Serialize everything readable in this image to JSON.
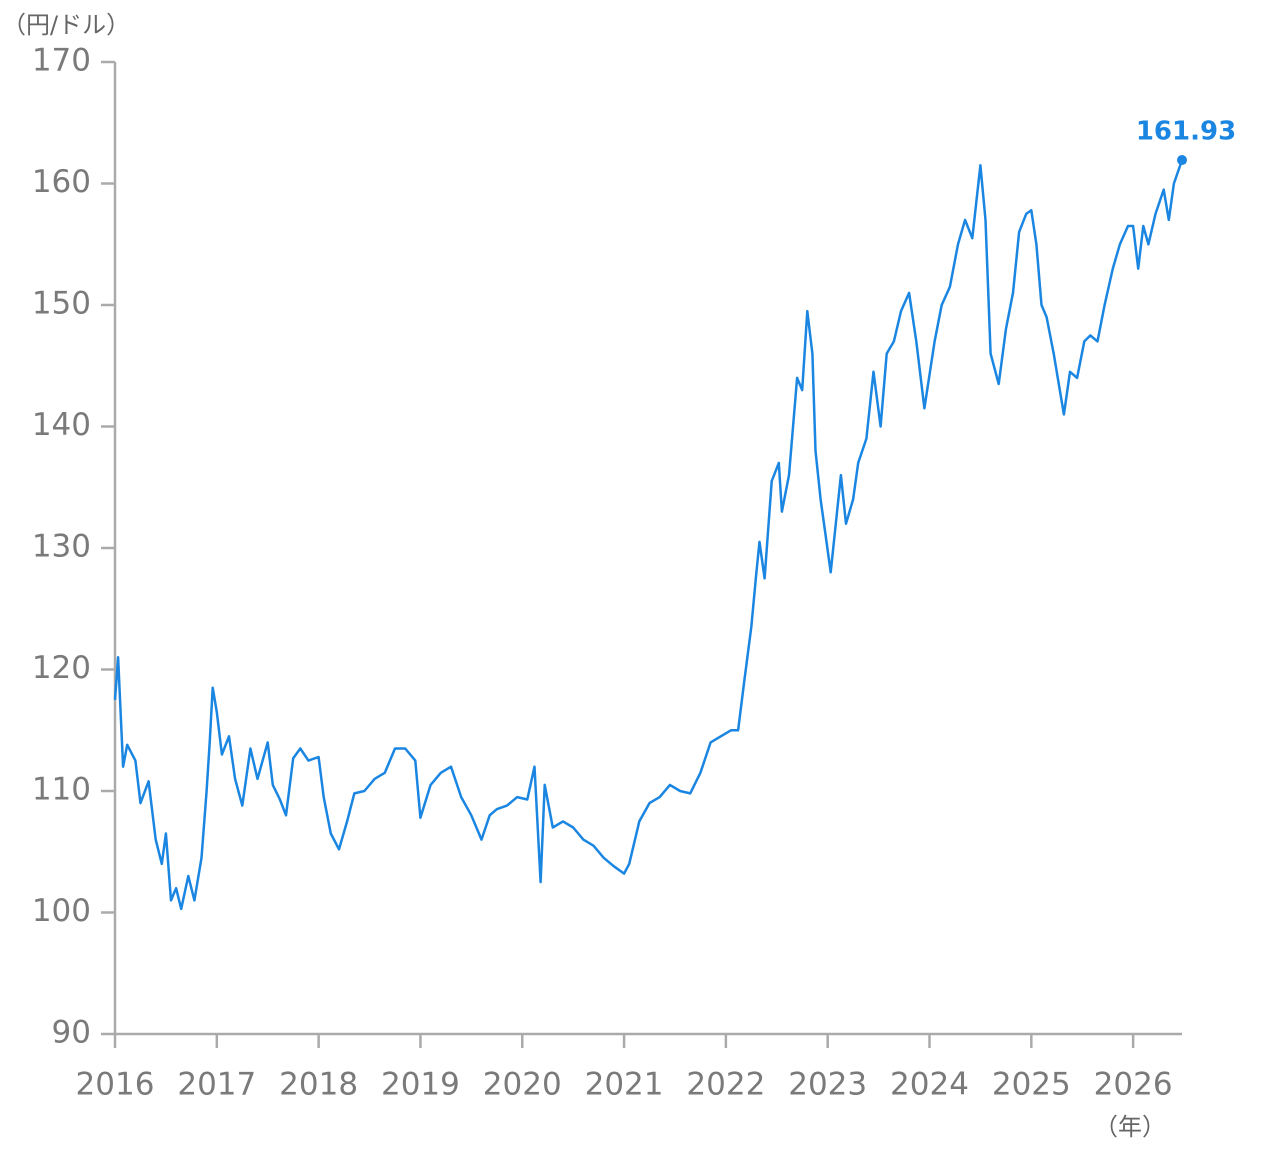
{
  "chart_data": {
    "type": "line",
    "y_label": "（円/ドル）",
    "x_label": "（年）",
    "color": "#1a86e2",
    "x": [
      2016.0,
      2016.03,
      2016.08,
      2016.12,
      2016.2,
      2016.25,
      2016.33,
      2016.4,
      2016.46,
      2016.5,
      2016.55,
      2016.6,
      2016.65,
      2016.72,
      2016.78,
      2016.85,
      2016.9,
      2016.93,
      2016.96,
      2017.0,
      2017.05,
      2017.12,
      2017.18,
      2017.25,
      2017.33,
      2017.4,
      2017.5,
      2017.55,
      2017.62,
      2017.68,
      2017.75,
      2017.82,
      2017.9,
      2018.0,
      2018.05,
      2018.12,
      2018.2,
      2018.28,
      2018.35,
      2018.45,
      2018.55,
      2018.65,
      2018.75,
      2018.85,
      2018.95,
      2019.0,
      2019.1,
      2019.2,
      2019.3,
      2019.4,
      2019.5,
      2019.6,
      2019.68,
      2019.75,
      2019.85,
      2019.95,
      2020.05,
      2020.12,
      2020.18,
      2020.22,
      2020.3,
      2020.4,
      2020.5,
      2020.6,
      2020.7,
      2020.8,
      2020.9,
      2021.0,
      2021.05,
      2021.15,
      2021.25,
      2021.35,
      2021.45,
      2021.55,
      2021.65,
      2021.75,
      2021.85,
      2021.95,
      2022.05,
      2022.12,
      2022.18,
      2022.25,
      2022.3,
      2022.33,
      2022.38,
      2022.45,
      2022.52,
      2022.55,
      2022.62,
      2022.7,
      2022.75,
      2022.8,
      2022.85,
      2022.88,
      2022.93,
      2022.98,
      2023.03,
      2023.08,
      2023.13,
      2023.18,
      2023.25,
      2023.3,
      2023.38,
      2023.45,
      2023.52,
      2023.58,
      2023.65,
      2023.72,
      2023.8,
      2023.87,
      2023.95,
      2024.05,
      2024.12,
      2024.2,
      2024.28,
      2024.35,
      2024.42,
      2024.5,
      2024.55,
      2024.6,
      2024.68,
      2024.75,
      2024.82,
      2024.88,
      2024.95,
      2025.0,
      2025.05,
      2025.1,
      2025.15,
      2025.22,
      2025.28,
      2025.32,
      2025.38,
      2025.45,
      2025.52,
      2025.58,
      2025.65,
      2025.72,
      2025.8,
      2025.87,
      2025.95,
      2026.0,
      2026.05,
      2026.1,
      2026.15,
      2026.22,
      2026.3,
      2026.35,
      2026.4,
      2026.48
    ],
    "values": [
      117.5,
      121.0,
      112,
      113.8,
      112.5,
      109,
      110.8,
      106,
      104,
      106.5,
      101,
      102,
      100.3,
      103,
      101,
      104.5,
      110,
      114,
      118.5,
      116.5,
      113,
      114.5,
      111,
      108.8,
      113.5,
      111,
      114,
      110.5,
      109.3,
      108,
      112.7,
      113.5,
      112.5,
      112.8,
      109.5,
      106.5,
      105.2,
      107.5,
      109.8,
      110,
      111,
      111.5,
      113.5,
      113.5,
      112.5,
      107.8,
      110.5,
      111.5,
      112,
      109.5,
      108,
      106,
      108,
      108.5,
      108.8,
      109.5,
      109.3,
      112,
      102.5,
      110.5,
      107,
      107.5,
      107,
      106,
      105.5,
      104.5,
      103.8,
      103.2,
      104,
      107.5,
      109,
      109.5,
      110.5,
      110,
      109.8,
      111.5,
      114,
      114.5,
      115,
      115,
      119,
      123.5,
      128,
      130.5,
      127.5,
      135.5,
      137,
      133,
      136,
      144,
      143,
      149.5,
      146,
      138,
      134,
      131,
      128,
      132,
      136,
      132,
      134,
      137,
      139,
      144.5,
      140,
      146,
      147,
      149.5,
      151,
      147,
      141.5,
      147,
      150,
      151.5,
      155,
      157,
      155.5,
      161.5,
      157,
      146,
      143.5,
      148,
      151,
      156,
      157.5,
      157.8,
      155,
      150,
      149,
      146,
      143,
      141,
      144.5,
      144,
      147,
      147.5,
      147,
      150,
      153,
      155,
      156.5,
      156.5,
      153,
      156.5,
      155,
      157.5,
      159.5,
      157,
      160,
      161.93
    ],
    "xlim": [
      2016,
      2026.48
    ],
    "xticks": [
      2016,
      2017,
      2018,
      2019,
      2020,
      2021,
      2022,
      2023,
      2024,
      2025,
      2026
    ],
    "ylim": [
      90,
      170
    ],
    "yticks": [
      90,
      100,
      110,
      120,
      130,
      140,
      150,
      160,
      170
    ]
  }
}
